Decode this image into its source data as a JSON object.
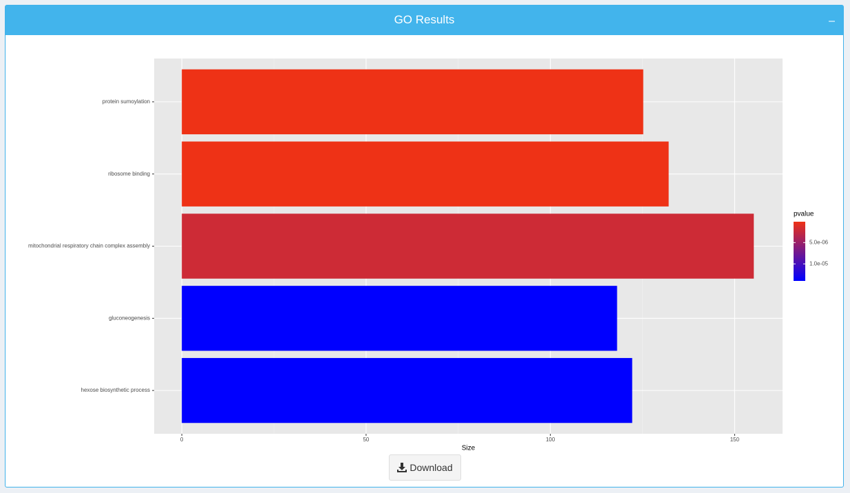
{
  "panel": {
    "title": "GO Results",
    "collapse_icon": "–",
    "button": "Download"
  },
  "chart_data": {
    "type": "bar",
    "orientation": "horizontal",
    "categories": [
      "protein sumoylation",
      "ribosome binding",
      "mitochondrial respiratory chain complex assembly",
      "gluconeogenesis",
      "hexose biosynthetic process"
    ],
    "values": [
      125.2,
      132.1,
      155.2,
      118.1,
      122.2
    ],
    "pvalue": [
      1e-07,
      1e-07,
      2e-06,
      1.4e-05,
      1.4e-05
    ],
    "xlabel": "Size",
    "xlim": [
      -7.5,
      163
    ],
    "xticks": [
      0,
      50,
      100,
      150
    ],
    "grid": true,
    "legend": {
      "title": "pvalue",
      "position": "right",
      "low_color": "#ee3216",
      "high_color": "#0000ff",
      "clim": [
        1e-07,
        1.4e-05
      ],
      "ticks": [
        {
          "value": 5e-06,
          "label": "5.0e-06"
        },
        {
          "value": 1e-05,
          "label": "1.0e-05"
        }
      ]
    }
  }
}
